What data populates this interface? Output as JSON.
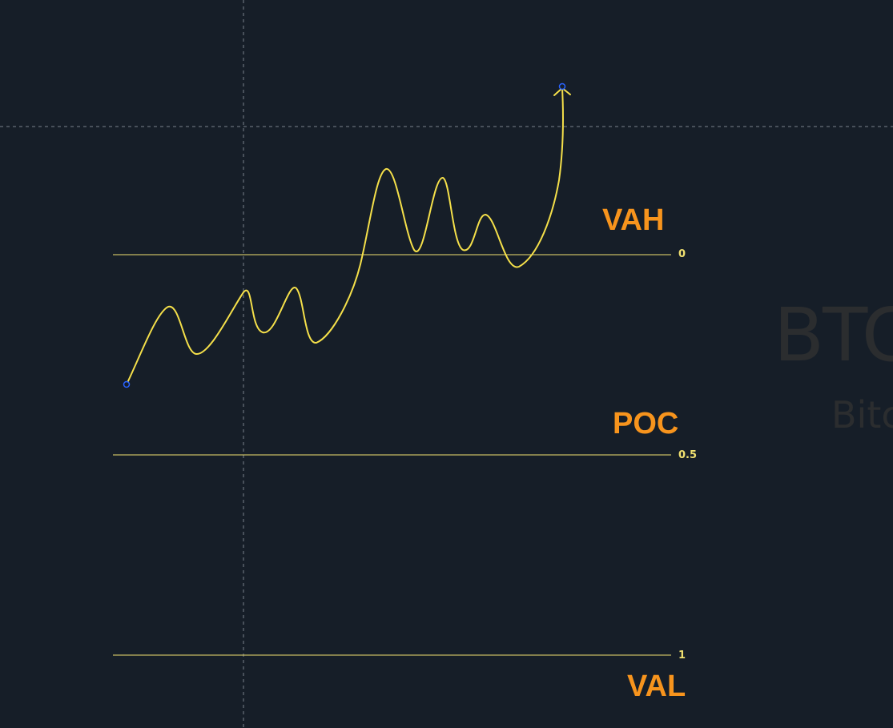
{
  "colors": {
    "background": "#161e28",
    "level_line": "#f0e070",
    "price_path": "#f5e04a",
    "label_accent": "#f7941d",
    "crosshair": "#9aa3ad",
    "anchor_point": "#2962ff",
    "watermark": "#2b2d2f"
  },
  "watermark": {
    "symbol": "BTC",
    "name": "Bitc"
  },
  "levels": [
    {
      "value": "0",
      "label": "VAH"
    },
    {
      "value": "0.5",
      "label": "POC"
    },
    {
      "value": "1",
      "label": "VAL"
    }
  ],
  "drawing": {
    "tool": "path-with-arrow"
  }
}
